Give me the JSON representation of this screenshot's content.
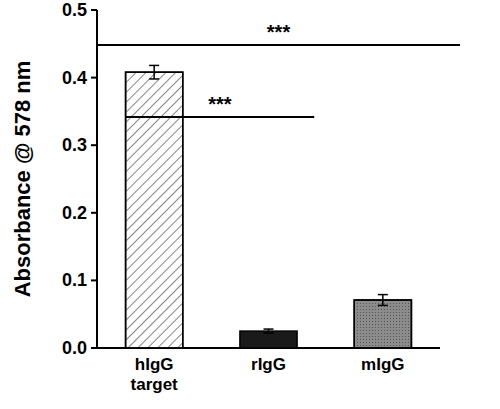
{
  "chart_data": {
    "type": "bar",
    "y_label": "Absorbance @ 578 nm",
    "categories": [
      "hIgG target",
      "rIgG",
      "mIgG"
    ],
    "values": [
      0.408,
      0.025,
      0.071
    ],
    "errors": [
      0.01,
      0.003,
      0.008
    ],
    "colors": [
      "#ffffff",
      "#1a1a1a",
      "#8c8c8c"
    ],
    "ylim": [
      0,
      0.5
    ],
    "yticks": [
      {
        "value": 0,
        "label": "0.0"
      },
      0.1,
      0.2,
      0.3,
      0.4,
      0.5
    ],
    "grid": false,
    "annotations": [
      {
        "text": "***",
        "between": [
          "hIgG target",
          "mIgG"
        ]
      },
      {
        "text": "***",
        "between": [
          "hIgG target",
          "rIgG"
        ]
      }
    ]
  }
}
